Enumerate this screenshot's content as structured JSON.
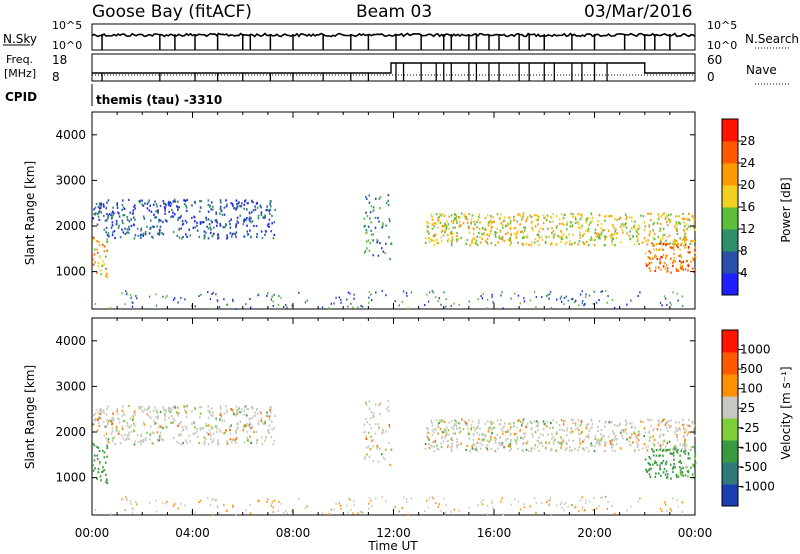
{
  "header": {
    "station": "Goose Bay (fitACF)",
    "beam": "Beam 03",
    "date": "03/Mar/2016"
  },
  "noise_panel": {
    "left_label": "N.Sky",
    "left_ticks": [
      "10^5",
      "10^0"
    ],
    "right_label": "N.Search",
    "right_ticks": [
      "10^5",
      "10^0"
    ]
  },
  "freq_panel": {
    "left_label_1": "Freq.",
    "left_label_2": "[MHz]",
    "left_ticks": [
      "18",
      "8"
    ],
    "right_label": "Nave",
    "right_ticks": [
      "60",
      "0"
    ]
  },
  "cpid": {
    "label": "CPID",
    "mode": "themis (tau) -3310"
  },
  "power_panel": {
    "ylabel": "Slant Range [km]",
    "yticks": [
      "4000",
      "3000",
      "2000",
      "1000"
    ],
    "colorbar_label": "Power [dB]",
    "colorbar_ticks": [
      "28",
      "24",
      "20",
      "16",
      "12",
      "8",
      "4"
    ],
    "colors": [
      "#1f1fff",
      "#2a4fa8",
      "#2e8f6a",
      "#5fbf3a",
      "#f2d020",
      "#ff9a00",
      "#ff5a00",
      "#ff1500"
    ]
  },
  "velocity_panel": {
    "ylabel": "Slant Range [km]",
    "yticks": [
      "4000",
      "3000",
      "2000",
      "1000"
    ],
    "colorbar_label": "Velocity [m s⁻¹]",
    "colorbar_ticks": [
      "1000",
      "500",
      "100",
      "25",
      "-25",
      "-100",
      "-500",
      "-1000"
    ],
    "colors": [
      "#1a3fb0",
      "#2f7a78",
      "#3a9a40",
      "#7fcf3a",
      "#c8c8c0",
      "#ff9000",
      "#ff5a00",
      "#ff1500"
    ]
  },
  "xaxis": {
    "label": "Time UT",
    "ticks": [
      "00:00",
      "04:00",
      "08:00",
      "12:00",
      "16:00",
      "20:00",
      "00:00"
    ]
  },
  "chart_data": [
    {
      "type": "heatmap",
      "title": "Power",
      "xlabel": "Time UT",
      "ylabel": "Slant Range [km]",
      "xlim": [
        0,
        24
      ],
      "ylim": [
        180,
        4500
      ],
      "zlabel": "Power [dB]",
      "zlim": [
        0,
        32
      ],
      "features": [
        {
          "name": "morning band",
          "t_start": 0.0,
          "t_end": 7.3,
          "range_start": 1750,
          "range_end": 2600,
          "power_db": 6
        },
        {
          "name": "near-range echoes",
          "t_start": 0.0,
          "t_end": 0.6,
          "range_start": 900,
          "range_end": 1800,
          "power_db": 20
        },
        {
          "name": "noon patch",
          "t_start": 10.8,
          "t_end": 11.9,
          "range_start": 1300,
          "range_end": 2700,
          "power_db": 10
        },
        {
          "name": "afternoon band",
          "t_start": 13.2,
          "t_end": 24.0,
          "range_start": 1600,
          "range_end": 2300,
          "power_db": 18
        },
        {
          "name": "late near range",
          "t_start": 22.0,
          "t_end": 24.0,
          "range_start": 1000,
          "range_end": 1700,
          "power_db": 24
        }
      ]
    },
    {
      "type": "heatmap",
      "title": "Velocity",
      "xlabel": "Time UT",
      "ylabel": "Slant Range [km]",
      "xlim": [
        0,
        24
      ],
      "ylim": [
        180,
        4500
      ],
      "zlabel": "Velocity [m s⁻¹]",
      "zlim": [
        -1000,
        1000
      ],
      "features": [
        {
          "name": "morning band",
          "t_start": 0.0,
          "t_end": 7.3,
          "range_start": 1750,
          "range_end": 2600,
          "velocity": 0
        },
        {
          "name": "near-range echoes",
          "t_start": 0.0,
          "t_end": 0.6,
          "range_start": 900,
          "range_end": 1800,
          "velocity": 150
        },
        {
          "name": "noon patch",
          "t_start": 10.8,
          "t_end": 11.9,
          "range_start": 1300,
          "range_end": 2700,
          "velocity": 0
        },
        {
          "name": "afternoon band",
          "t_start": 13.2,
          "t_end": 24.0,
          "range_start": 1600,
          "range_end": 2300,
          "velocity": 0
        },
        {
          "name": "late near range",
          "t_start": 22.0,
          "t_end": 24.0,
          "range_start": 1000,
          "range_end": 1700,
          "velocity": 200
        }
      ]
    }
  ]
}
